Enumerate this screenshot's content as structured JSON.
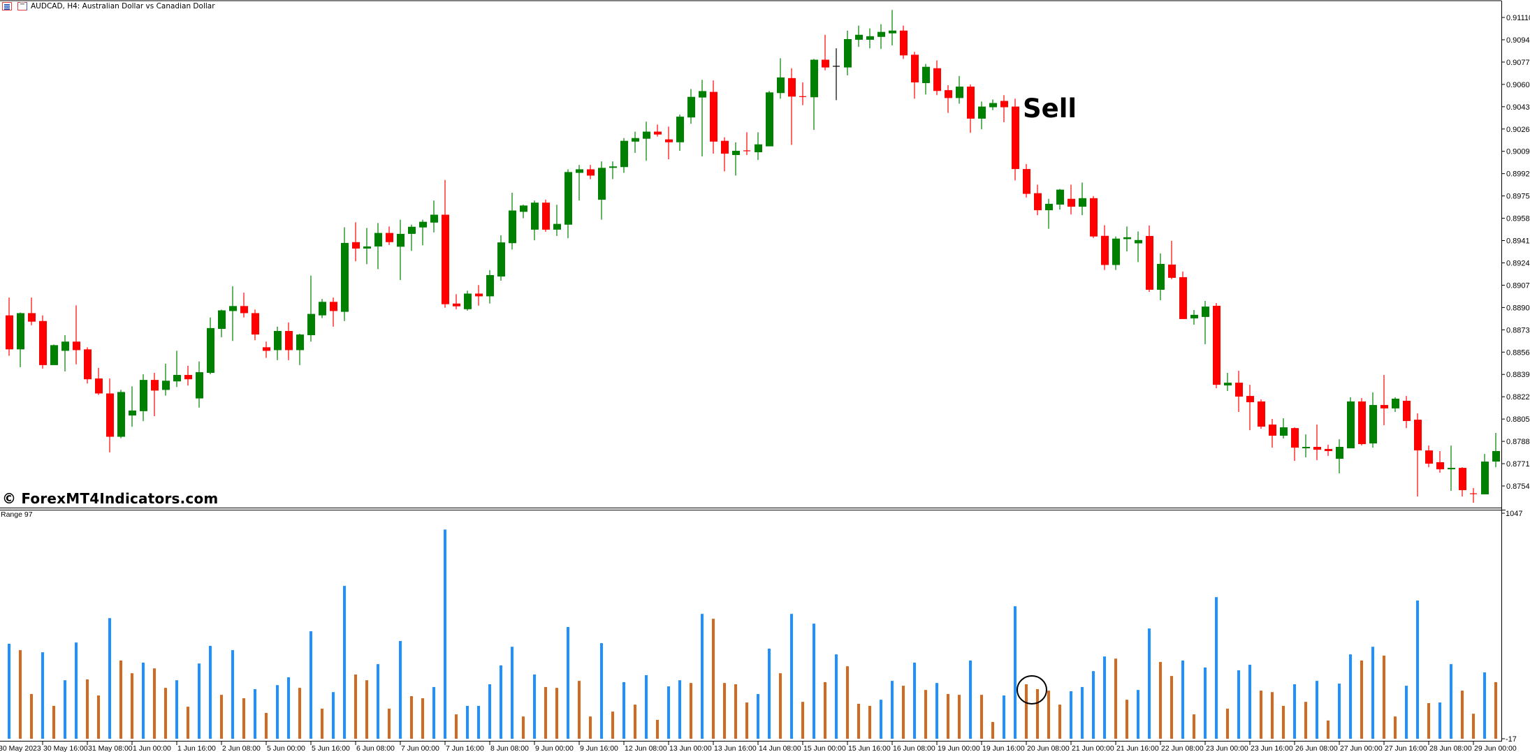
{
  "header": {
    "symbol_title": "AUDCAD, H4:  Australian Dollar vs Canadian Dollar",
    "icons": [
      "list-window-icon",
      "chart-window-icon"
    ]
  },
  "watermark": "© ForexMT4Indicators.com",
  "annotation": {
    "sell_label": "Sell"
  },
  "colors": {
    "bull_candle": "#008000",
    "bear_candle": "#ff0000",
    "doji_candle": "#000000",
    "range_blue": "#1e90ff",
    "range_orange": "#d2691e",
    "background": "#ffffff",
    "axis": "#000000"
  },
  "time_axis": {
    "labels": [
      "30 May 2023",
      "30 May 16:00",
      "31 May 08:00",
      "1 Jun 00:00",
      "1 Jun 16:00",
      "2 Jun 08:00",
      "5 Jun 00:00",
      "5 Jun 16:00",
      "6 Jun 08:00",
      "7 Jun 00:00",
      "7 Jun 16:00",
      "8 Jun 08:00",
      "9 Jun 00:00",
      "9 Jun 16:00",
      "12 Jun 08:00",
      "13 Jun 00:00",
      "13 Jun 16:00",
      "14 Jun 08:00",
      "15 Jun 00:00",
      "15 Jun 16:00",
      "16 Jun 08:00",
      "19 Jun 00:00",
      "19 Jun 16:00",
      "20 Jun 08:00",
      "21 Jun 00:00",
      "21 Jun 16:00",
      "22 Jun 08:00",
      "23 Jun 00:00",
      "23 Jun 16:00",
      "26 Jun 08:00",
      "27 Jun 00:00",
      "27 Jun 16:00",
      "28 Jun 08:00",
      "29 Jun 00:00"
    ]
  },
  "chart_data": [
    {
      "type": "candlestick",
      "symbol": "AUDCAD",
      "timeframe": "H4",
      "ylim": [
        0.8754,
        0.9111
      ],
      "y_ticks": [
        "0.91110",
        "0.90940",
        "0.90770",
        "0.90600",
        "0.90430",
        "0.90260",
        "0.90090",
        "0.89920",
        "0.89750",
        "0.89580",
        "0.89410",
        "0.89240",
        "0.89070",
        "0.88900",
        "0.88730",
        "0.88560",
        "0.88390",
        "0.88220",
        "0.88050",
        "0.87880",
        "0.87710",
        "0.87540"
      ],
      "ohlc_columns": [
        "open",
        "high",
        "low",
        "close"
      ],
      "ohlc": [
        [
          0.8884,
          0.88976,
          0.88532,
          0.88581
        ],
        [
          0.88581,
          0.88862,
          0.88445,
          0.88857
        ],
        [
          0.88857,
          0.88976,
          0.88765,
          0.88792
        ],
        [
          0.88797,
          0.8884,
          0.88434,
          0.88461
        ],
        [
          0.88461,
          0.88618,
          0.88461,
          0.88613
        ],
        [
          0.8857,
          0.88689,
          0.88413,
          0.8864
        ],
        [
          0.8864,
          0.88916,
          0.88467,
          0.88575
        ],
        [
          0.88581,
          0.88597,
          0.88321,
          0.88353
        ],
        [
          0.88359,
          0.8844,
          0.88234,
          0.88245
        ],
        [
          0.88245,
          0.88359,
          0.87796,
          0.87915
        ],
        [
          0.87915,
          0.88272,
          0.87904,
          0.88256
        ],
        [
          0.88077,
          0.88299,
          0.87991,
          0.88115
        ],
        [
          0.8811,
          0.88391,
          0.88034,
          0.88348
        ],
        [
          0.88348,
          0.88402,
          0.88072,
          0.88267
        ],
        [
          0.88272,
          0.88472,
          0.88229,
          0.88342
        ],
        [
          0.88337,
          0.8857,
          0.88294,
          0.88386
        ],
        [
          0.88386,
          0.88456,
          0.88305,
          0.88353
        ],
        [
          0.88207,
          0.88489,
          0.88137,
          0.88407
        ],
        [
          0.88402,
          0.88824,
          0.88391,
          0.88743
        ],
        [
          0.88737,
          0.88884,
          0.88673,
          0.88878
        ],
        [
          0.88873,
          0.89062,
          0.88645,
          0.88911
        ],
        [
          0.88911,
          0.89013,
          0.88824,
          0.88857
        ],
        [
          0.88857,
          0.88884,
          0.88651,
          0.88694
        ],
        [
          0.88597,
          0.8864,
          0.88516,
          0.8857
        ],
        [
          0.88575,
          0.88754,
          0.88499,
          0.88721
        ],
        [
          0.88721,
          0.88786,
          0.88499,
          0.88575
        ],
        [
          0.88575,
          0.887,
          0.88461,
          0.88694
        ],
        [
          0.88689,
          0.89143,
          0.8864,
          0.88851
        ],
        [
          0.8884,
          0.88965,
          0.88819,
          0.88943
        ],
        [
          0.88943,
          0.88976,
          0.88754,
          0.88873
        ],
        [
          0.88867,
          0.89511,
          0.88797,
          0.89392
        ],
        [
          0.89398,
          0.89549,
          0.89252,
          0.89349
        ],
        [
          0.89349,
          0.89506,
          0.8923,
          0.89365
        ],
        [
          0.89365,
          0.89544,
          0.89192,
          0.89468
        ],
        [
          0.89468,
          0.89517,
          0.89376,
          0.89398
        ],
        [
          0.89363,
          0.89569,
          0.89109,
          0.89461
        ],
        [
          0.89461,
          0.89531,
          0.89331,
          0.89515
        ],
        [
          0.8951,
          0.89569,
          0.89374,
          0.89553
        ],
        [
          0.89547,
          0.89715,
          0.89472,
          0.89607
        ],
        [
          0.89607,
          0.89872,
          0.88898,
          0.88925
        ],
        [
          0.8893,
          0.89001,
          0.88887,
          0.88909
        ],
        [
          0.88887,
          0.89028,
          0.88876,
          0.89006
        ],
        [
          0.89006,
          0.89071,
          0.88914,
          0.88985
        ],
        [
          0.88985,
          0.89185,
          0.8893,
          0.89147
        ],
        [
          0.89136,
          0.8945,
          0.89104,
          0.89396
        ],
        [
          0.8939,
          0.89775,
          0.89342,
          0.89639
        ],
        [
          0.89629,
          0.89683,
          0.8958,
          0.89677
        ],
        [
          0.89493,
          0.89715,
          0.89412,
          0.89699
        ],
        [
          0.89699,
          0.89721,
          0.89477,
          0.89493
        ],
        [
          0.89493,
          0.89683,
          0.89445,
          0.89537
        ],
        [
          0.89531,
          0.89953,
          0.89428,
          0.89932
        ],
        [
          0.89926,
          0.89986,
          0.89715,
          0.89953
        ],
        [
          0.89953,
          0.89986,
          0.89878,
          0.89905
        ],
        [
          0.89721,
          0.90013,
          0.89569,
          0.89964
        ],
        [
          0.89964,
          0.90013,
          0.89878,
          0.89975
        ],
        [
          0.8997,
          0.90191,
          0.89926,
          0.9017
        ],
        [
          0.90164,
          0.9024,
          0.90078,
          0.90191
        ],
        [
          0.90186,
          0.90316,
          0.90018,
          0.9024
        ],
        [
          0.9024,
          0.90294,
          0.90202,
          0.90218
        ],
        [
          0.90181,
          0.90278,
          0.90029,
          0.90159
        ],
        [
          0.90159,
          0.9037,
          0.90094,
          0.90354
        ],
        [
          0.90348,
          0.90565,
          0.903,
          0.90505
        ],
        [
          0.905,
          0.90635,
          0.90051,
          0.90549
        ],
        [
          0.90543,
          0.9063,
          0.90072,
          0.90164
        ],
        [
          0.9017,
          0.90197,
          0.89937,
          0.90072
        ],
        [
          0.90062,
          0.90159,
          0.89905,
          0.90094
        ],
        [
          0.90094,
          0.90235,
          0.90062,
          0.90089
        ],
        [
          0.90083,
          0.90235,
          0.90024,
          0.90143
        ],
        [
          0.90128,
          0.9055,
          0.90128,
          0.90539
        ],
        [
          0.90534,
          0.90799,
          0.90491,
          0.90653
        ],
        [
          0.90648,
          0.90723,
          0.90139,
          0.90507
        ],
        [
          0.90507,
          0.90615,
          0.90442,
          0.90503
        ],
        [
          0.90502,
          0.90794,
          0.90253,
          0.90788
        ],
        [
          0.90788,
          0.90978,
          0.90707,
          0.90729
        ],
        [
          0.90738,
          0.90875,
          0.9048,
          0.90738
        ],
        [
          0.90729,
          0.9101,
          0.90669,
          0.90945
        ],
        [
          0.9094,
          0.91048,
          0.90886,
          0.90978
        ],
        [
          0.9094,
          0.91027,
          0.90875,
          0.90967
        ],
        [
          0.90962,
          0.91059,
          0.9087,
          0.91
        ],
        [
          0.90989,
          0.91167,
          0.90897,
          0.9101
        ],
        [
          0.9101,
          0.91048,
          0.90794,
          0.90821
        ],
        [
          0.90826,
          0.90848,
          0.90491,
          0.90615
        ],
        [
          0.9061,
          0.90756,
          0.90523,
          0.90734
        ],
        [
          0.90723,
          0.90783,
          0.90518,
          0.9055
        ],
        [
          0.90556,
          0.90594,
          0.90383,
          0.90496
        ],
        [
          0.90496,
          0.90664,
          0.90453,
          0.90583
        ],
        [
          0.90583,
          0.90599,
          0.90231,
          0.90339
        ],
        [
          0.90339,
          0.90469,
          0.90258,
          0.90431
        ],
        [
          0.90426,
          0.90485,
          0.90404,
          0.90458
        ],
        [
          0.90474,
          0.90518,
          0.90312,
          0.90426
        ],
        [
          0.90431,
          0.90491,
          0.89868,
          0.89955
        ],
        [
          0.89955,
          0.89993,
          0.89738,
          0.89766
        ],
        [
          0.89771,
          0.89836,
          0.89603,
          0.89641
        ],
        [
          0.89641,
          0.89728,
          0.895,
          0.8969
        ],
        [
          0.89684,
          0.89803,
          0.89646,
          0.89798
        ],
        [
          0.89728,
          0.89836,
          0.89609,
          0.89668
        ],
        [
          0.89668,
          0.89852,
          0.89603,
          0.89733
        ],
        [
          0.89733,
          0.89749,
          0.8943,
          0.89441
        ],
        [
          0.89446,
          0.89527,
          0.89186,
          0.89224
        ],
        [
          0.89224,
          0.89441,
          0.89186,
          0.89425
        ],
        [
          0.89421,
          0.89517,
          0.89327,
          0.89435
        ],
        [
          0.89389,
          0.89479,
          0.89246,
          0.89414
        ],
        [
          0.89445,
          0.89525,
          0.89019,
          0.89035
        ],
        [
          0.89035,
          0.89312,
          0.88955,
          0.89232
        ],
        [
          0.89227,
          0.89408,
          0.89115,
          0.89126
        ],
        [
          0.89131,
          0.89174,
          0.88812,
          0.88812
        ],
        [
          0.88817,
          0.88881,
          0.88769,
          0.88844
        ],
        [
          0.88828,
          0.8895,
          0.8862,
          0.88907
        ],
        [
          0.88913,
          0.88934,
          0.88285,
          0.88311
        ],
        [
          0.88306,
          0.88402,
          0.88264,
          0.88327
        ],
        [
          0.88327,
          0.88418,
          0.88104,
          0.88221
        ],
        [
          0.88226,
          0.88311,
          0.87965,
          0.88178
        ],
        [
          0.88184,
          0.882,
          0.87976,
          0.87992
        ],
        [
          0.88008,
          0.88051,
          0.87832,
          0.87923
        ],
        [
          0.87923,
          0.88056,
          0.87902,
          0.87987
        ],
        [
          0.87981,
          0.87987,
          0.87731,
          0.87832
        ],
        [
          0.87827,
          0.87933,
          0.87758,
          0.87838
        ],
        [
          0.87838,
          0.88008,
          0.87737,
          0.87816
        ],
        [
          0.87822,
          0.87854,
          0.87769,
          0.87806
        ],
        [
          0.87747,
          0.87896,
          0.87636,
          0.87838
        ],
        [
          0.87827,
          0.88216,
          0.87827,
          0.88184
        ],
        [
          0.88184,
          0.8821,
          0.87849,
          0.87859
        ],
        [
          0.87864,
          0.88253,
          0.87832,
          0.88157
        ],
        [
          0.88157,
          0.88386,
          0.88003,
          0.88131
        ],
        [
          0.88131,
          0.88216,
          0.88104,
          0.88205
        ],
        [
          0.88189,
          0.88226,
          0.87981,
          0.88035
        ],
        [
          0.88045,
          0.88093,
          0.8746,
          0.87811
        ],
        [
          0.87811,
          0.87848,
          0.87683,
          0.8771
        ],
        [
          0.87721,
          0.87806,
          0.87641,
          0.87667
        ],
        [
          0.87667,
          0.87848,
          0.87503,
          0.87678
        ],
        [
          0.87678,
          0.87683,
          0.8746,
          0.87508
        ],
        [
          0.87481,
          0.87524,
          0.87412,
          0.87478
        ],
        [
          0.87476,
          0.87784,
          0.87476,
          0.87726
        ],
        [
          0.87726,
          0.87944,
          0.87683,
          0.87806
        ]
      ]
    },
    {
      "type": "bar",
      "title": "Range 97",
      "ylim": [
        -17,
        1047
      ],
      "y_ticks": [
        "1047",
        "-17"
      ],
      "values": [
        431,
        401,
        194,
        391,
        138,
        259,
        437,
        263,
        187,
        552,
        352,
        292,
        342,
        315,
        223,
        259,
        134,
        338,
        421,
        190,
        401,
        174,
        217,
        105,
        236,
        273,
        223,
        490,
        125,
        203,
        704,
        286,
        259,
        335,
        125,
        444,
        184,
        174,
        227,
        970,
        98,
        138,
        138,
        240,
        329,
        417,
        88,
        286,
        227,
        223,
        510,
        256,
        88,
        434,
        111,
        250,
        144,
        283,
        72,
        230,
        259,
        246,
        572,
        549,
        246,
        240,
        154,
        194,
        408,
        292,
        572,
        157,
        526,
        250,
        381,
        325,
        148,
        138,
        167,
        256,
        233,
        342,
        213,
        246,
        194,
        190,
        352,
        190,
        62,
        187,
        608,
        240,
        217,
        210,
        144,
        207,
        227,
        302,
        371,
        361,
        167,
        213,
        503,
        345,
        279,
        352,
        98,
        319,
        651,
        125,
        306,
        332,
        210,
        203,
        138,
        240,
        157,
        256,
        69,
        243,
        381,
        352,
        417,
        375,
        88,
        233,
        635,
        151,
        154,
        335,
        210,
        101,
        296,
        250
      ],
      "bar_colors": [
        "B",
        "O",
        "O",
        "B",
        "O",
        "B",
        "B",
        "O",
        "O",
        "B",
        "O",
        "O",
        "B",
        "O",
        "O",
        "B",
        "O",
        "B",
        "B",
        "O",
        "B",
        "O",
        "B",
        "O",
        "B",
        "B",
        "O",
        "B",
        "O",
        "B",
        "B",
        "O",
        "O",
        "B",
        "O",
        "B",
        "O",
        "O",
        "B",
        "B",
        "O",
        "B",
        "B",
        "B",
        "B",
        "B",
        "O",
        "B",
        "O",
        "O",
        "B",
        "O",
        "O",
        "B",
        "O",
        "B",
        "O",
        "B",
        "O",
        "B",
        "B",
        "O",
        "B",
        "O",
        "O",
        "O",
        "O",
        "B",
        "B",
        "O",
        "B",
        "O",
        "B",
        "O",
        "B",
        "O",
        "O",
        "O",
        "B",
        "B",
        "O",
        "B",
        "O",
        "B",
        "O",
        "O",
        "B",
        "O",
        "O",
        "B",
        "B",
        "O",
        "O",
        "O",
        "O",
        "B",
        "B",
        "B",
        "B",
        "O",
        "O",
        "B",
        "B",
        "O",
        "O",
        "B",
        "O",
        "B",
        "B",
        "O",
        "B",
        "B",
        "O",
        "O",
        "O",
        "B",
        "O",
        "B",
        "O",
        "B",
        "B",
        "O",
        "B",
        "O",
        "O",
        "B",
        "B",
        "O",
        "B",
        "B",
        "O",
        "O",
        "B",
        "O"
      ],
      "bar_color_map": {
        "B": "#1e90ff",
        "O": "#d2691e"
      },
      "highlight": {
        "type": "circle",
        "bar_indices": [
          91,
          92
        ]
      }
    }
  ]
}
